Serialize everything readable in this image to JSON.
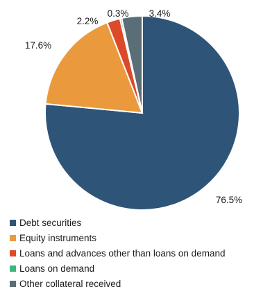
{
  "chart_data": {
    "type": "pie",
    "categories": [
      "Debt securities",
      "Equity instruments",
      "Loans and advances other than loans on demand",
      "Loans on demand",
      "Other collateral received"
    ],
    "values": [
      76.5,
      17.6,
      2.2,
      0.3,
      3.4
    ],
    "data_labels": [
      "76.5%",
      "17.6%",
      "2.2%",
      "0.3%",
      "3.4%"
    ],
    "colors": [
      "#2e5578",
      "#ea9a3c",
      "#dc4a2a",
      "#3bb77e",
      "#5a6e77"
    ],
    "legend_position": "bottom"
  }
}
